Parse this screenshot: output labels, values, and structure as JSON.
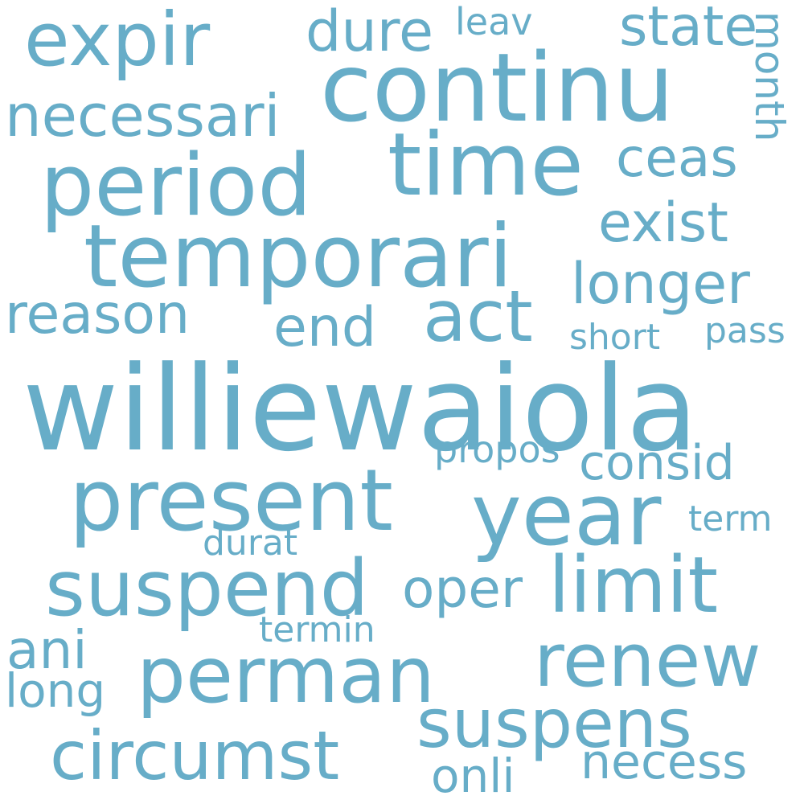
{
  "word_cloud": {
    "text_color": "#67adc8",
    "background_color": "#ffffff",
    "words": [
      "williewaiola",
      "continu",
      "temporari",
      "present",
      "time",
      "period",
      "year",
      "expir",
      "suspend",
      "perman",
      "renew",
      "limit",
      "suspens",
      "circumst",
      "act",
      "necessari",
      "reason",
      "state",
      "longer",
      "exist",
      "end",
      "dure",
      "ceas",
      "consid",
      "oper",
      "ani",
      "necess",
      "month",
      "onli",
      "long",
      "leav",
      "short",
      "pass",
      "propos",
      "term",
      "durat",
      "termin"
    ]
  }
}
